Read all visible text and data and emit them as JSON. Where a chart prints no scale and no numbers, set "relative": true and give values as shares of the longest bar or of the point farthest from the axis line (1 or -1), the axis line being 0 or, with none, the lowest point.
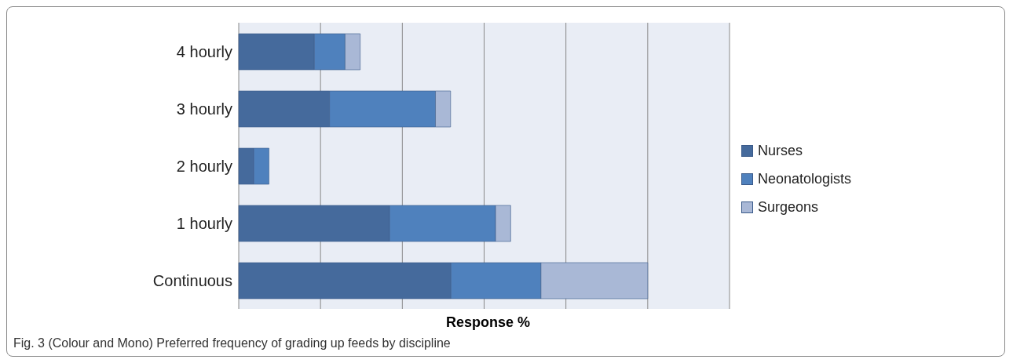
{
  "chart_data": {
    "type": "bar",
    "orientation": "horizontal",
    "stacked": true,
    "relative": true,
    "xlabel": "Response %",
    "categories": [
      "4 hourly",
      "3 hourly",
      "2 hourly",
      "1 hourly",
      "Continuous"
    ],
    "series": [
      {
        "name": "Nurses",
        "color": "#456a9c",
        "values": [
          0.185,
          0.222,
          0.037,
          0.369,
          0.519
        ]
      },
      {
        "name": "Neonatologists",
        "color": "#4f81bd",
        "values": [
          0.075,
          0.259,
          0.037,
          0.259,
          0.22
        ]
      },
      {
        "name": "Surgeons",
        "color": "#a9b8d6",
        "values": [
          0.037,
          0.037,
          null,
          0.037,
          0.261
        ]
      }
    ],
    "grid": "x",
    "legend": "right",
    "tick_labels": "y",
    "annotations": [
      "Fig. 3 (Colour and Mono) Preferred frequency of grading up feeds by discipline"
    ]
  }
}
